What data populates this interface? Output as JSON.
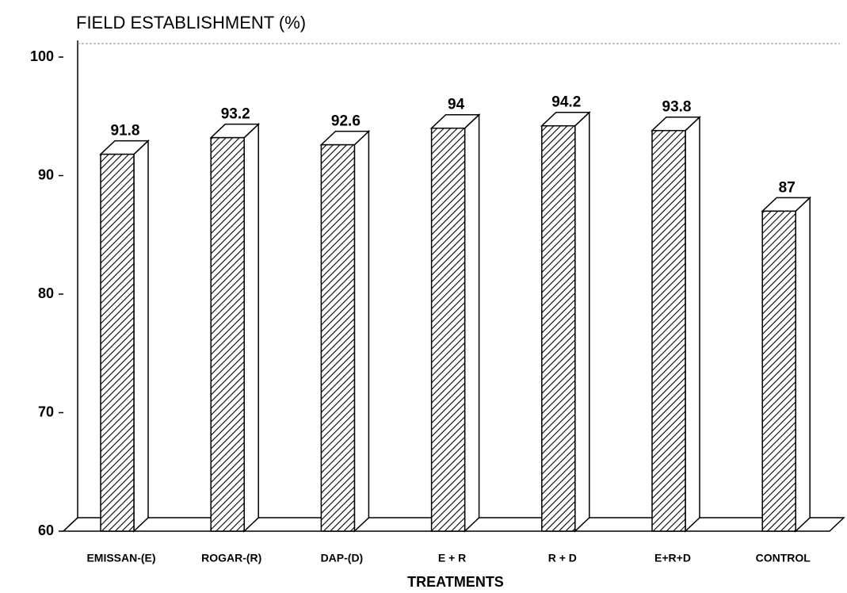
{
  "chart_data": {
    "type": "bar3d",
    "title": "FIELD ESTABLISHMENT (%)",
    "x_label": "TREATMENTS",
    "categories": [
      "EMISSAN-(E)",
      "ROGAR-(R)",
      "DAP-(D)",
      "E + R",
      "R + D",
      "E+R+D",
      "CONTROL"
    ],
    "values": [
      91.8,
      93.2,
      92.6,
      94,
      94.2,
      93.8,
      87
    ],
    "color": "#000000",
    "ylim": [
      60,
      100
    ],
    "yticks": [
      60,
      70,
      80,
      90,
      100
    ]
  }
}
